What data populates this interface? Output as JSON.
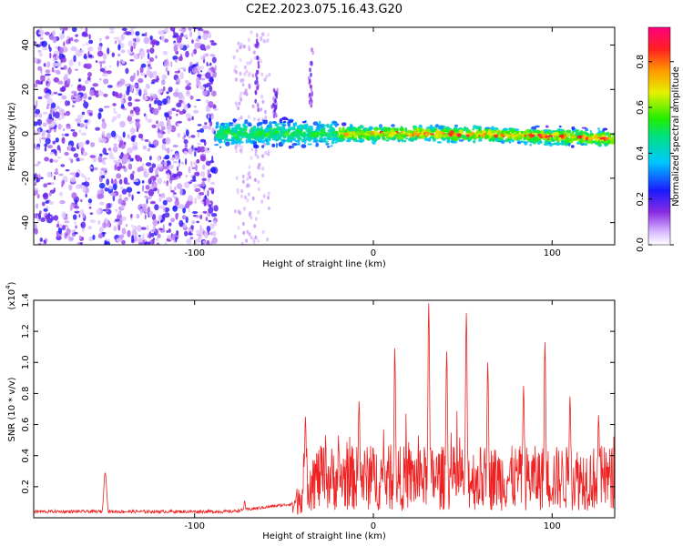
{
  "figure_title": "C2E2.2023.075.16.43.G20",
  "colors": {
    "snr_line": "#ee2222",
    "axes": "#000000",
    "background": "#ffffff"
  },
  "chart_data": [
    {
      "type": "heatmap",
      "xlabel": "Height of straight line (km)",
      "ylabel": "Frequency (Hz)",
      "xlim": [
        -190,
        135
      ],
      "ylim": [
        -50,
        48
      ],
      "x_ticks": [
        -100,
        0,
        100
      ],
      "y_ticks": [
        -40,
        -20,
        0,
        20,
        40
      ],
      "grid": false,
      "colorbar": {
        "label": "Normalized spectral amplitude",
        "range": [
          0,
          0.95
        ],
        "ticks": [
          0.0,
          0.2,
          0.4,
          0.6,
          0.8
        ],
        "colormap": "rainbow (white-purple-blue-cyan-green-yellow-orange-red-magenta)",
        "position": "right"
      },
      "features": {
        "noise_region_x": [
          -190,
          -88
        ],
        "signal_band_x": [
          -88,
          135
        ],
        "signal_center_hz": 0,
        "signal_band_halfwidth_hz": 5
      }
    },
    {
      "type": "line",
      "name": "SNR",
      "xlabel": "Height of straight line (km)",
      "ylabel": "SNR (10 * v/v)",
      "y_multiplier_label": "(x10",
      "y_multiplier_exp": "4",
      "y_multiplier_close": ")",
      "xlim": [
        -190,
        135
      ],
      "ylim": [
        0,
        1.4
      ],
      "x_ticks": [
        -100,
        0,
        100
      ],
      "y_ticks": [
        0.2,
        0.4,
        0.6,
        0.8,
        1.0,
        1.2,
        1.4
      ],
      "grid": false,
      "peaks": [
        {
          "x": -150,
          "y": 0.29
        },
        {
          "x": -72,
          "y": 0.11
        },
        {
          "x": -38,
          "y": 0.65
        },
        {
          "x": -8,
          "y": 0.75
        },
        {
          "x": 12,
          "y": 1.09
        },
        {
          "x": 31,
          "y": 1.38
        },
        {
          "x": 41,
          "y": 1.07
        },
        {
          "x": 52,
          "y": 1.32
        },
        {
          "x": 64,
          "y": 1.0
        },
        {
          "x": 84,
          "y": 0.85
        },
        {
          "x": 96,
          "y": 1.13
        },
        {
          "x": 110,
          "y": 0.78
        },
        {
          "x": 126,
          "y": 0.66
        }
      ]
    }
  ]
}
